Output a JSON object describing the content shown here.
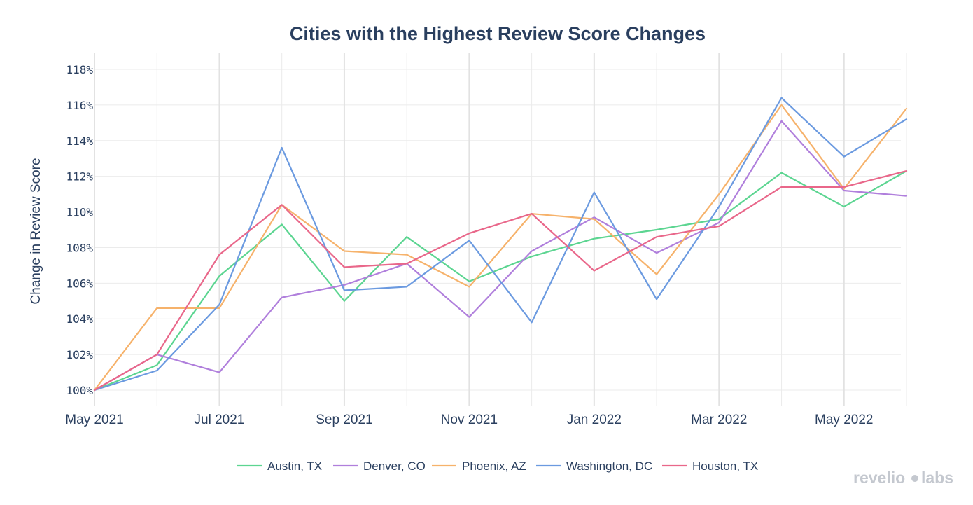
{
  "chart_data": {
    "type": "line",
    "title": "Cities with the Highest Review Score Changes",
    "xlabel": "",
    "ylabel": "Change in Review Score",
    "x": [
      "2021-05",
      "2021-06",
      "2021-07",
      "2021-08",
      "2021-09",
      "2021-10",
      "2021-11",
      "2021-12",
      "2022-01",
      "2022-02",
      "2022-03",
      "2022-04",
      "2022-05",
      "2022-06"
    ],
    "x_tick_labels": [
      {
        "x": "2021-05",
        "label": "May 2021"
      },
      {
        "x": "2021-07",
        "label": "Jul 2021"
      },
      {
        "x": "2021-09",
        "label": "Sep 2021"
      },
      {
        "x": "2021-11",
        "label": "Nov 2021"
      },
      {
        "x": "2022-01",
        "label": "Jan 2022"
      },
      {
        "x": "2022-03",
        "label": "Mar 2022"
      },
      {
        "x": "2022-05",
        "label": "May 2022"
      }
    ],
    "y_tick_labels": [
      "100%",
      "102%",
      "104%",
      "106%",
      "108%",
      "110%",
      "112%",
      "114%",
      "116%",
      "118%"
    ],
    "y_ticks": [
      100,
      102,
      104,
      106,
      108,
      110,
      112,
      114,
      116,
      118
    ],
    "ylim": [
      99.3,
      118.8
    ],
    "grid": true,
    "legend_position": "bottom",
    "series": [
      {
        "name": "Austin, TX",
        "color": "#5cd591",
        "values": [
          100.0,
          101.4,
          106.4,
          109.3,
          105.0,
          108.6,
          106.1,
          107.5,
          108.5,
          109.0,
          109.6,
          112.2,
          110.3,
          112.3
        ]
      },
      {
        "name": "Denver, CO",
        "color": "#b07fdc",
        "values": [
          100.0,
          102.0,
          101.0,
          105.2,
          105.9,
          107.1,
          104.1,
          107.8,
          109.7,
          107.7,
          109.4,
          115.1,
          111.2,
          110.9
        ]
      },
      {
        "name": "Phoenix, AZ",
        "color": "#f6b26b",
        "values": [
          100.0,
          104.6,
          104.6,
          110.4,
          107.8,
          107.6,
          105.8,
          109.9,
          109.6,
          106.5,
          111.0,
          116.0,
          111.3,
          115.8
        ]
      },
      {
        "name": "Washington, DC",
        "color": "#6b9ae0",
        "values": [
          100.0,
          101.1,
          104.8,
          113.6,
          105.6,
          105.8,
          108.4,
          103.8,
          111.1,
          105.1,
          110.3,
          116.4,
          113.1,
          115.2
        ]
      },
      {
        "name": "Houston, TX",
        "color": "#e9678a",
        "values": [
          100.0,
          102.0,
          107.6,
          110.4,
          106.9,
          107.1,
          108.8,
          109.9,
          106.7,
          108.6,
          109.2,
          111.4,
          111.4,
          112.3
        ]
      }
    ]
  },
  "watermark": {
    "text_left": "revelio",
    "text_right": "labs"
  }
}
